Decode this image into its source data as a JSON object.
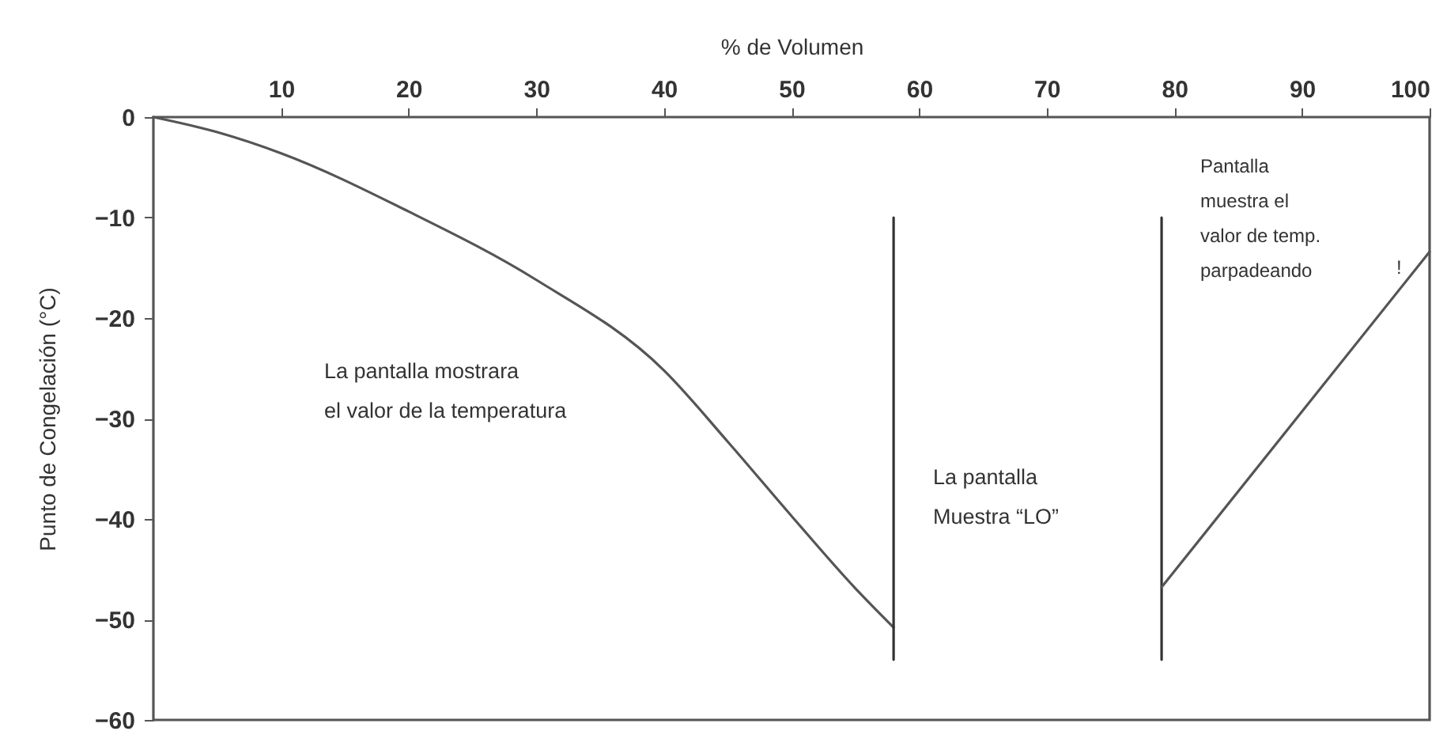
{
  "chart_data": {
    "type": "line",
    "xlabel": "% de Volumen",
    "ylabel": "Punto de Congelación (°C)",
    "xlim": [
      0,
      100
    ],
    "xticks": [
      10,
      20,
      30,
      40,
      50,
      60,
      70,
      80,
      90,
      100
    ],
    "ylim": [
      -60,
      0
    ],
    "yticks": [
      0,
      -10,
      -20,
      -30,
      -40,
      -50,
      -60
    ],
    "grid": false,
    "marker": "none",
    "line_style": "solid",
    "annotations": [
      "La pantalla mostrara\nel valor de la temperatura",
      "La pantalla\nMuestra “LO”",
      "Pantalla\nmuestra el\nvalor de temp.\nparpadeando",
      "!"
    ],
    "series": [
      {
        "color": "#555555",
        "x": [
          0,
          5,
          10,
          20,
          30,
          40,
          45,
          50,
          55,
          58
        ],
        "values": [
          0,
          -1.5,
          -3.6,
          -9.4,
          -16.2,
          -25.2,
          -32.3,
          -39.7,
          -46.9,
          -50.8
        ]
      },
      {
        "color": "#333333",
        "x": [
          58,
          58
        ],
        "values": [
          -10,
          -54
        ]
      },
      {
        "color": "#333333",
        "x": [
          79,
          79
        ],
        "values": [
          -10,
          -54
        ]
      },
      {
        "color": "#555555",
        "x": [
          79,
          100
        ],
        "values": [
          -46.8,
          -13.4
        ]
      }
    ]
  }
}
